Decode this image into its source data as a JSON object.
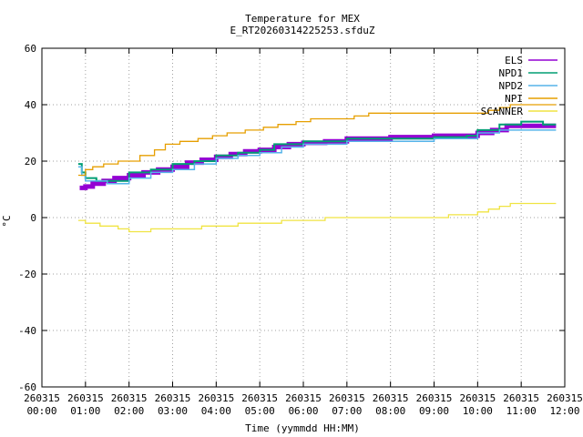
{
  "chart_data": {
    "type": "line",
    "title": "Temperature for MEX",
    "subtitle": "E_RT20260314225253.sfduZ",
    "xlabel": "Time (yymmdd HH:MM)",
    "ylabel": "°C",
    "xlim": [
      "00:00",
      "12:00"
    ],
    "ylim": [
      -60,
      60
    ],
    "grid": true,
    "legend_position": "top-right",
    "y_ticks": [
      -60,
      -40,
      -20,
      0,
      20,
      40,
      60
    ],
    "x_ticks": [
      {
        "date": "260315",
        "time": "00:00"
      },
      {
        "date": "260315",
        "time": "01:00"
      },
      {
        "date": "260315",
        "time": "02:00"
      },
      {
        "date": "260315",
        "time": "03:00"
      },
      {
        "date": "260315",
        "time": "04:00"
      },
      {
        "date": "260315",
        "time": "05:00"
      },
      {
        "date": "260315",
        "time": "06:00"
      },
      {
        "date": "260315",
        "time": "07:00"
      },
      {
        "date": "260315",
        "time": "08:00"
      },
      {
        "date": "260315",
        "time": "09:00"
      },
      {
        "date": "260315",
        "time": "10:00"
      },
      {
        "date": "260315",
        "time": "11:00"
      },
      {
        "date": "260315",
        "time": "12:00"
      }
    ],
    "series": [
      {
        "name": "ELS",
        "color": "#9400d3",
        "points": [
          [
            "00:52",
            10.5
          ],
          [
            "01:00",
            11
          ],
          [
            "01:10",
            12
          ],
          [
            "01:25",
            13
          ],
          [
            "01:40",
            14
          ],
          [
            "02:00",
            15
          ],
          [
            "02:20",
            16
          ],
          [
            "02:40",
            17
          ],
          [
            "03:00",
            18
          ],
          [
            "03:20",
            19.5
          ],
          [
            "03:40",
            20.5
          ],
          [
            "04:00",
            21.5
          ],
          [
            "04:20",
            22.5
          ],
          [
            "04:40",
            23.5
          ],
          [
            "05:00",
            24
          ],
          [
            "05:20",
            25
          ],
          [
            "05:40",
            26
          ],
          [
            "06:00",
            26.5
          ],
          [
            "06:30",
            27
          ],
          [
            "07:00",
            28
          ],
          [
            "07:30",
            28
          ],
          [
            "08:00",
            28.5
          ],
          [
            "08:30",
            28.5
          ],
          [
            "09:00",
            29
          ],
          [
            "09:30",
            29
          ],
          [
            "10:00",
            30
          ],
          [
            "10:20",
            31
          ],
          [
            "10:40",
            32.5
          ],
          [
            "11:00",
            32.5
          ],
          [
            "11:30",
            32.5
          ],
          [
            "11:48",
            32.5
          ]
        ]
      },
      {
        "name": "NPD1",
        "color": "#009e73",
        "points": [
          [
            "00:50",
            19
          ],
          [
            "00:55",
            16
          ],
          [
            "01:00",
            14
          ],
          [
            "01:15",
            13
          ],
          [
            "01:30",
            13
          ],
          [
            "02:00",
            16
          ],
          [
            "02:30",
            17
          ],
          [
            "03:00",
            19
          ],
          [
            "03:30",
            20
          ],
          [
            "04:00",
            22
          ],
          [
            "04:30",
            23
          ],
          [
            "05:00",
            24
          ],
          [
            "05:20",
            26
          ],
          [
            "05:40",
            26
          ],
          [
            "06:00",
            27
          ],
          [
            "06:30",
            27
          ],
          [
            "07:00",
            28
          ],
          [
            "07:30",
            28
          ],
          [
            "08:00",
            28
          ],
          [
            "09:00",
            28.5
          ],
          [
            "09:45",
            29
          ],
          [
            "10:00",
            31
          ],
          [
            "10:30",
            33
          ],
          [
            "11:00",
            34
          ],
          [
            "11:20",
            34
          ],
          [
            "11:30",
            33
          ],
          [
            "11:48",
            33
          ]
        ]
      },
      {
        "name": "NPD2",
        "color": "#56b4e9",
        "points": [
          [
            "00:50",
            18
          ],
          [
            "00:55",
            15
          ],
          [
            "01:00",
            13
          ],
          [
            "01:30",
            12
          ],
          [
            "02:00",
            14
          ],
          [
            "02:30",
            16
          ],
          [
            "03:00",
            17
          ],
          [
            "03:30",
            19
          ],
          [
            "04:00",
            21
          ],
          [
            "04:30",
            22
          ],
          [
            "05:00",
            23
          ],
          [
            "05:30",
            25
          ],
          [
            "06:00",
            26
          ],
          [
            "06:30",
            26
          ],
          [
            "07:00",
            27
          ],
          [
            "07:30",
            27
          ],
          [
            "08:00",
            27
          ],
          [
            "09:00",
            28
          ],
          [
            "09:45",
            28
          ],
          [
            "10:00",
            30
          ],
          [
            "10:30",
            31
          ],
          [
            "11:00",
            31
          ],
          [
            "11:30",
            31
          ],
          [
            "11:48",
            31
          ]
        ]
      },
      {
        "name": "NPI",
        "color": "#e69f00",
        "points": [
          [
            "00:50",
            15
          ],
          [
            "01:00",
            17
          ],
          [
            "01:10",
            18
          ],
          [
            "01:25",
            19
          ],
          [
            "01:45",
            20
          ],
          [
            "02:15",
            22
          ],
          [
            "02:35",
            24
          ],
          [
            "02:50",
            26
          ],
          [
            "03:10",
            27
          ],
          [
            "03:35",
            28
          ],
          [
            "03:55",
            29
          ],
          [
            "04:15",
            30
          ],
          [
            "04:40",
            31
          ],
          [
            "05:05",
            32
          ],
          [
            "05:25",
            33
          ],
          [
            "05:50",
            34
          ],
          [
            "06:10",
            35
          ],
          [
            "07:00",
            35
          ],
          [
            "07:10",
            36
          ],
          [
            "07:30",
            37
          ],
          [
            "08:00",
            37
          ],
          [
            "09:00",
            37
          ],
          [
            "10:00",
            37
          ],
          [
            "10:15",
            38
          ],
          [
            "10:30",
            39
          ],
          [
            "10:45",
            40
          ],
          [
            "11:00",
            40
          ],
          [
            "11:48",
            40
          ]
        ]
      },
      {
        "name": "SCANNER",
        "color": "#f0e442",
        "points": [
          [
            "00:50",
            -1
          ],
          [
            "01:00",
            -2
          ],
          [
            "01:20",
            -3
          ],
          [
            "01:45",
            -4
          ],
          [
            "02:00",
            -5
          ],
          [
            "02:30",
            -4
          ],
          [
            "03:00",
            -4
          ],
          [
            "03:40",
            -3
          ],
          [
            "04:00",
            -3
          ],
          [
            "04:30",
            -2
          ],
          [
            "05:00",
            -2
          ],
          [
            "05:30",
            -1
          ],
          [
            "06:00",
            -1
          ],
          [
            "06:30",
            0
          ],
          [
            "07:00",
            0
          ],
          [
            "08:00",
            0
          ],
          [
            "09:00",
            0
          ],
          [
            "09:20",
            1
          ],
          [
            "09:40",
            1
          ],
          [
            "10:00",
            2
          ],
          [
            "10:15",
            3
          ],
          [
            "10:30",
            4
          ],
          [
            "10:45",
            5
          ],
          [
            "11:00",
            5
          ],
          [
            "11:48",
            5
          ]
        ]
      }
    ]
  }
}
